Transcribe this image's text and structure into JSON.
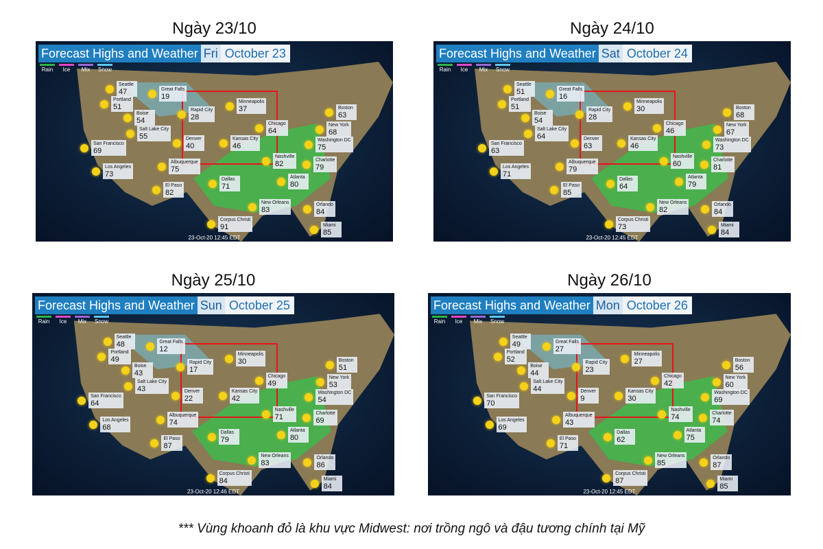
{
  "panels": [
    {
      "heading": "Ngày 23/10",
      "title": "Forecast Highs and Weather",
      "day": "Fri",
      "date": "October 23",
      "legend": [
        "Rain",
        "Ice",
        "Mix",
        "Snow"
      ],
      "timestamp": "23-Oct-20 12:45 EDT",
      "cities": [
        {
          "name": "Seattle",
          "temp": 47
        },
        {
          "name": "Great Falls",
          "temp": 19
        },
        {
          "name": "Portland",
          "temp": 51
        },
        {
          "name": "Boise",
          "temp": 54
        },
        {
          "name": "Salt Lake City",
          "temp": 55
        },
        {
          "name": "San Francisco",
          "temp": 69
        },
        {
          "name": "Los Angeles",
          "temp": 73
        },
        {
          "name": "Albuquerque",
          "temp": 75
        },
        {
          "name": "El Paso",
          "temp": 82
        },
        {
          "name": "Rapid City",
          "temp": 28
        },
        {
          "name": "Minneapolis",
          "temp": 37
        },
        {
          "name": "Denver",
          "temp": 40
        },
        {
          "name": "Kansas City",
          "temp": 46
        },
        {
          "name": "Chicago",
          "temp": 64
        },
        {
          "name": "Dallas",
          "temp": 71
        },
        {
          "name": "Nashville",
          "temp": 82
        },
        {
          "name": "Atlanta",
          "temp": 80
        },
        {
          "name": "Charlotte",
          "temp": 79
        },
        {
          "name": "Washington DC",
          "temp": 75
        },
        {
          "name": "New York",
          "temp": 68
        },
        {
          "name": "Boston",
          "temp": 63
        },
        {
          "name": "New Orleans",
          "temp": 83
        },
        {
          "name": "Orlando",
          "temp": 84
        },
        {
          "name": "Miami",
          "temp": 85
        },
        {
          "name": "Corpus Christi",
          "temp": 91
        }
      ]
    },
    {
      "heading": "Ngày 24/10",
      "title": "Forecast Highs and Weather",
      "day": "Sat",
      "date": "October 24",
      "legend": [
        "Rain",
        "Ice",
        "Mix",
        "Snow"
      ],
      "timestamp": "23-Oct-20 12:45 EDT",
      "cities": [
        {
          "name": "Seattle",
          "temp": 51
        },
        {
          "name": "Great Falls",
          "temp": 16
        },
        {
          "name": "Portland",
          "temp": 51
        },
        {
          "name": "Boise",
          "temp": 54
        },
        {
          "name": "Salt Lake City",
          "temp": 64
        },
        {
          "name": "San Francisco",
          "temp": 63
        },
        {
          "name": "Los Angeles",
          "temp": 71
        },
        {
          "name": "Albuquerque",
          "temp": 79
        },
        {
          "name": "El Paso",
          "temp": 85
        },
        {
          "name": "Rapid City",
          "temp": 28
        },
        {
          "name": "Minneapolis",
          "temp": 30
        },
        {
          "name": "Denver",
          "temp": 63
        },
        {
          "name": "Kansas City",
          "temp": 46
        },
        {
          "name": "Chicago",
          "temp": 46
        },
        {
          "name": "Dallas",
          "temp": 64
        },
        {
          "name": "Nashville",
          "temp": 60
        },
        {
          "name": "Atlanta",
          "temp": 79
        },
        {
          "name": "Charlotte",
          "temp": 81
        },
        {
          "name": "Washington DC",
          "temp": 73
        },
        {
          "name": "New York",
          "temp": 67
        },
        {
          "name": "Boston",
          "temp": 68
        },
        {
          "name": "New Orleans",
          "temp": 82
        },
        {
          "name": "Orlando",
          "temp": 84
        },
        {
          "name": "Miami",
          "temp": 84
        },
        {
          "name": "Corpus Christi",
          "temp": 73
        }
      ]
    },
    {
      "heading": "Ngày 25/10",
      "title": "Forecast Highs and Weather",
      "day": "Sun",
      "date": "October 25",
      "legend": [
        "Rain",
        "Ice",
        "Mix",
        "Snow"
      ],
      "timestamp": "23-Oct-20 12:46 EDT",
      "cities": [
        {
          "name": "Seattle",
          "temp": 48
        },
        {
          "name": "Great Falls",
          "temp": 12
        },
        {
          "name": "Portland",
          "temp": 49
        },
        {
          "name": "Boise",
          "temp": 43
        },
        {
          "name": "Salt Lake City",
          "temp": 43
        },
        {
          "name": "San Francisco",
          "temp": 64
        },
        {
          "name": "Los Angeles",
          "temp": 68
        },
        {
          "name": "Albuquerque",
          "temp": 74
        },
        {
          "name": "El Paso",
          "temp": 87
        },
        {
          "name": "Rapid City",
          "temp": 17
        },
        {
          "name": "Minneapolis",
          "temp": 30
        },
        {
          "name": "Denver",
          "temp": 22
        },
        {
          "name": "Kansas City",
          "temp": 42
        },
        {
          "name": "Chicago",
          "temp": 49
        },
        {
          "name": "Dallas",
          "temp": 79
        },
        {
          "name": "Nashville",
          "temp": 71
        },
        {
          "name": "Atlanta",
          "temp": 80
        },
        {
          "name": "Charlotte",
          "temp": 69
        },
        {
          "name": "Washington DC",
          "temp": 54
        },
        {
          "name": "New York",
          "temp": 53
        },
        {
          "name": "Boston",
          "temp": 51
        },
        {
          "name": "New Orleans",
          "temp": 83
        },
        {
          "name": "Orlando",
          "temp": 86
        },
        {
          "name": "Miami",
          "temp": 84
        },
        {
          "name": "Corpus Christi",
          "temp": 84
        }
      ]
    },
    {
      "heading": "Ngày 26/10",
      "title": "Forecast Highs and Weather",
      "day": "Mon",
      "date": "October 26",
      "legend": [
        "Rain",
        "Ice",
        "Mix",
        "Snow"
      ],
      "timestamp": "23-Oct-20 12:45 EDT",
      "cities": [
        {
          "name": "Seattle",
          "temp": 49
        },
        {
          "name": "Great Falls",
          "temp": 27
        },
        {
          "name": "Portland",
          "temp": 52
        },
        {
          "name": "Boise",
          "temp": 44
        },
        {
          "name": "Salt Lake City",
          "temp": 44
        },
        {
          "name": "San Francisco",
          "temp": 70
        },
        {
          "name": "Los Angeles",
          "temp": 69
        },
        {
          "name": "Albuquerque",
          "temp": 43
        },
        {
          "name": "El Paso",
          "temp": 71
        },
        {
          "name": "Rapid City",
          "temp": 23
        },
        {
          "name": "Minneapolis",
          "temp": 27
        },
        {
          "name": "Denver",
          "temp": 9
        },
        {
          "name": "Kansas City",
          "temp": 30
        },
        {
          "name": "Chicago",
          "temp": 42
        },
        {
          "name": "Dallas",
          "temp": 62
        },
        {
          "name": "Nashville",
          "temp": 74
        },
        {
          "name": "Atlanta",
          "temp": 75
        },
        {
          "name": "Charlotte",
          "temp": 74
        },
        {
          "name": "Washington DC",
          "temp": 69
        },
        {
          "name": "New York",
          "temp": 60
        },
        {
          "name": "Boston",
          "temp": 56
        },
        {
          "name": "New Orleans",
          "temp": 85
        },
        {
          "name": "Orlando",
          "temp": 87
        },
        {
          "name": "Miami",
          "temp": 85
        },
        {
          "name": "Corpus Christi",
          "temp": 87
        }
      ]
    }
  ],
  "footnote": "*** Vùng khoanh đỏ là khu vực Midwest: nơi trồng ngô và đậu tương chính tại Mỹ"
}
